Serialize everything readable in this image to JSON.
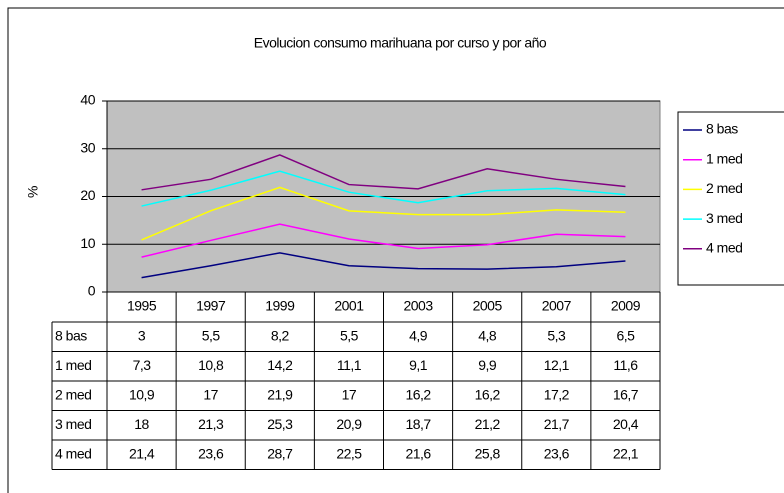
{
  "chart_data": {
    "type": "line",
    "title": "Evolucion consumo marihuana por curso y por año",
    "ylabel": "%",
    "categories": [
      "1995",
      "1997",
      "1999",
      "2001",
      "2003",
      "2005",
      "2007",
      "2009"
    ],
    "ylim": [
      0,
      40
    ],
    "yticks": [
      0,
      10,
      20,
      30,
      40
    ],
    "grid": true,
    "legend": "right",
    "series": [
      {
        "name": "8 bas",
        "color": "#000080",
        "values": [
          3,
          5.5,
          8.2,
          5.5,
          4.9,
          4.8,
          5.3,
          6.5
        ],
        "value_labels": [
          "3",
          "5,5",
          "8,2",
          "5,5",
          "4,9",
          "4,8",
          "5,3",
          "6,5"
        ]
      },
      {
        "name": "1 med",
        "color": "#ff00ff",
        "values": [
          7.3,
          10.8,
          14.2,
          11.1,
          9.1,
          9.9,
          12.1,
          11.6
        ],
        "value_labels": [
          "7,3",
          "10,8",
          "14,2",
          "11,1",
          "9,1",
          "9,9",
          "12,1",
          "11,6"
        ]
      },
      {
        "name": "2 med",
        "color": "#ffff00",
        "values": [
          10.9,
          17,
          21.9,
          17,
          16.2,
          16.2,
          17.2,
          16.7
        ],
        "value_labels": [
          "10,9",
          "17",
          "21,9",
          "17",
          "16,2",
          "16,2",
          "17,2",
          "16,7"
        ]
      },
      {
        "name": "3 med",
        "color": "#00ffff",
        "values": [
          18,
          21.3,
          25.3,
          20.9,
          18.7,
          21.2,
          21.7,
          20.4
        ],
        "value_labels": [
          "18",
          "21,3",
          "25,3",
          "20,9",
          "18,7",
          "21,2",
          "21,7",
          "20,4"
        ]
      },
      {
        "name": "4 med",
        "color": "#800080",
        "values": [
          21.4,
          23.6,
          28.7,
          22.5,
          21.6,
          25.8,
          23.6,
          22.1
        ],
        "value_labels": [
          "21,4",
          "23,6",
          "28,7",
          "22,5",
          "21,6",
          "25,8",
          "23,6",
          "22,1"
        ]
      }
    ]
  }
}
